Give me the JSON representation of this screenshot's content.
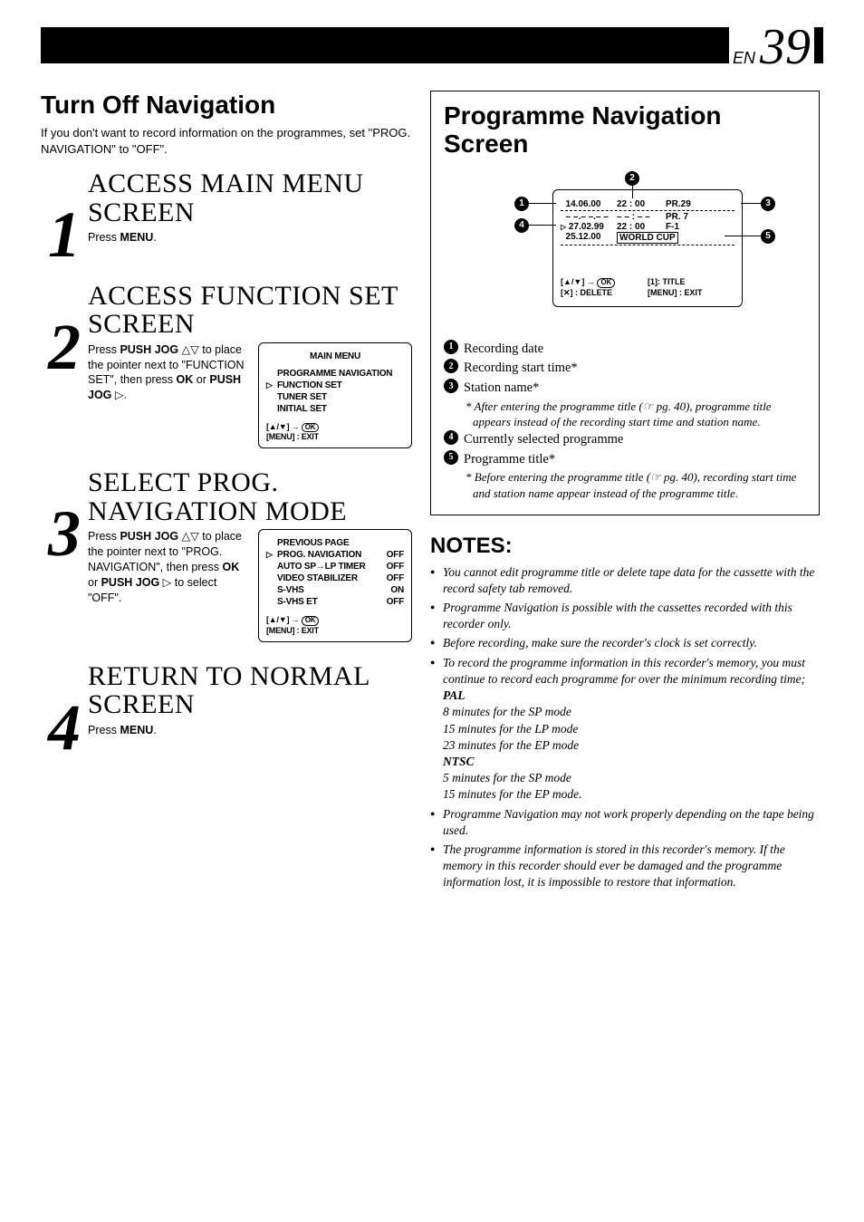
{
  "page": {
    "lang": "EN",
    "num": "39"
  },
  "left": {
    "heading": "Turn Off Navigation",
    "intro": "If you don't want to record information on the programmes, set \"PROG. NAVIGATION\" to \"OFF\".",
    "steps": [
      {
        "num": "1",
        "title": "ACCESS MAIN MENU SCREEN",
        "text_html": "Press <b>MENU</b>."
      },
      {
        "num": "2",
        "title": "ACCESS FUNCTION SET SCREEN",
        "text_html": "Press <b>PUSH JOG</b> △▽ to place the pointer next to \"FUNCTION SET\", then press <b>OK</b> or <b>PUSH JOG</b> ▷.",
        "osd": {
          "title": "MAIN MENU",
          "lines": [
            {
              "label": "PROGRAMME NAVIGATION"
            },
            {
              "label": "FUNCTION SET",
              "pointer": true
            },
            {
              "label": "TUNER SET"
            },
            {
              "label": "INITIAL SET"
            }
          ],
          "footer": [
            "[▲/▼] → OK",
            "[MENU] : EXIT"
          ]
        }
      },
      {
        "num": "3",
        "title": "SELECT PROG. NAVIGATION MODE",
        "text_html": "Press <b>PUSH JOG</b> △▽ to place the pointer next to \"PROG. NAVIGATION\", then press <b>OK</b> or <b>PUSH JOG</b> ▷ to select \"OFF\".",
        "osd": {
          "lines": [
            {
              "label": "PREVIOUS PAGE"
            },
            {
              "label": "PROG. NAVIGATION",
              "value": "OFF",
              "pointer": true
            },
            {
              "label": "AUTO SP→LP TIMER",
              "value": "OFF"
            },
            {
              "label": "VIDEO STABILIZER",
              "value": "OFF"
            },
            {
              "label": "S-VHS",
              "value": "ON"
            },
            {
              "label": "S-VHS ET",
              "value": "OFF"
            }
          ],
          "footer": [
            "[▲/▼] → OK",
            "[MENU] : EXIT"
          ]
        }
      },
      {
        "num": "4",
        "title": "RETURN TO NORMAL SCREEN",
        "text_html": "Press <b>MENU</b>."
      }
    ]
  },
  "right": {
    "heading": "Programme Navigation Screen",
    "screen": {
      "rows": [
        {
          "date": "14.06.00",
          "time": "22 : 00",
          "ch": "PR.29"
        },
        {
          "date": "– –.– –.– –",
          "time": "– – : – –",
          "ch": "PR. 7"
        },
        {
          "date": "27.02.99",
          "time": "22 : 00",
          "ch": "F-1",
          "pointer": true
        },
        {
          "date": "25.12.00",
          "time": "WORLD CUP",
          "boxed": true
        }
      ],
      "footer": [
        "[▲/▼] → OK",
        "[✕] : DELETE",
        "[1]: TITLE",
        "[MENU] : EXIT"
      ]
    },
    "legend": [
      {
        "n": "1",
        "text": "Recording date"
      },
      {
        "n": "2",
        "text": "Recording start time*"
      },
      {
        "n": "3",
        "text": "Station name*",
        "sub": "* After entering the programme title (☞ pg. 40), programme title appears instead of the recording start time and station name."
      },
      {
        "n": "4",
        "text": "Currently selected programme"
      },
      {
        "n": "5",
        "text": "Programme title*",
        "sub": "* Before entering the programme title (☞ pg. 40), recording start time and station name appear instead of the programme title."
      }
    ],
    "notes_heading": "NOTES:",
    "notes": [
      "You cannot edit programme title or delete tape data for the cassette with the record safety tab removed.",
      "Programme Navigation is possible with the cassettes recorded with this recorder only.",
      "Before recording, make sure the recorder's clock is set correctly.",
      {
        "text": "To record the programme information in this recorder's memory, you must continue to record each programme for over the minimum recording time;",
        "sub": [
          {
            "bold": true,
            "t": "PAL"
          },
          {
            "t": "8 minutes for the SP mode"
          },
          {
            "t": "15 minutes for the LP mode"
          },
          {
            "t": "23 minutes for the EP mode"
          },
          {
            "bold": true,
            "t": "NTSC"
          },
          {
            "t": "5 minutes for the SP mode"
          },
          {
            "t": "15 minutes for the EP mode."
          }
        ]
      },
      "Programme Navigation may not work properly depending on the tape being used.",
      "The programme information is stored in this recorder's memory. If the memory in this recorder should ever be damaged and the programme information lost, it is impossible to restore that information."
    ]
  }
}
